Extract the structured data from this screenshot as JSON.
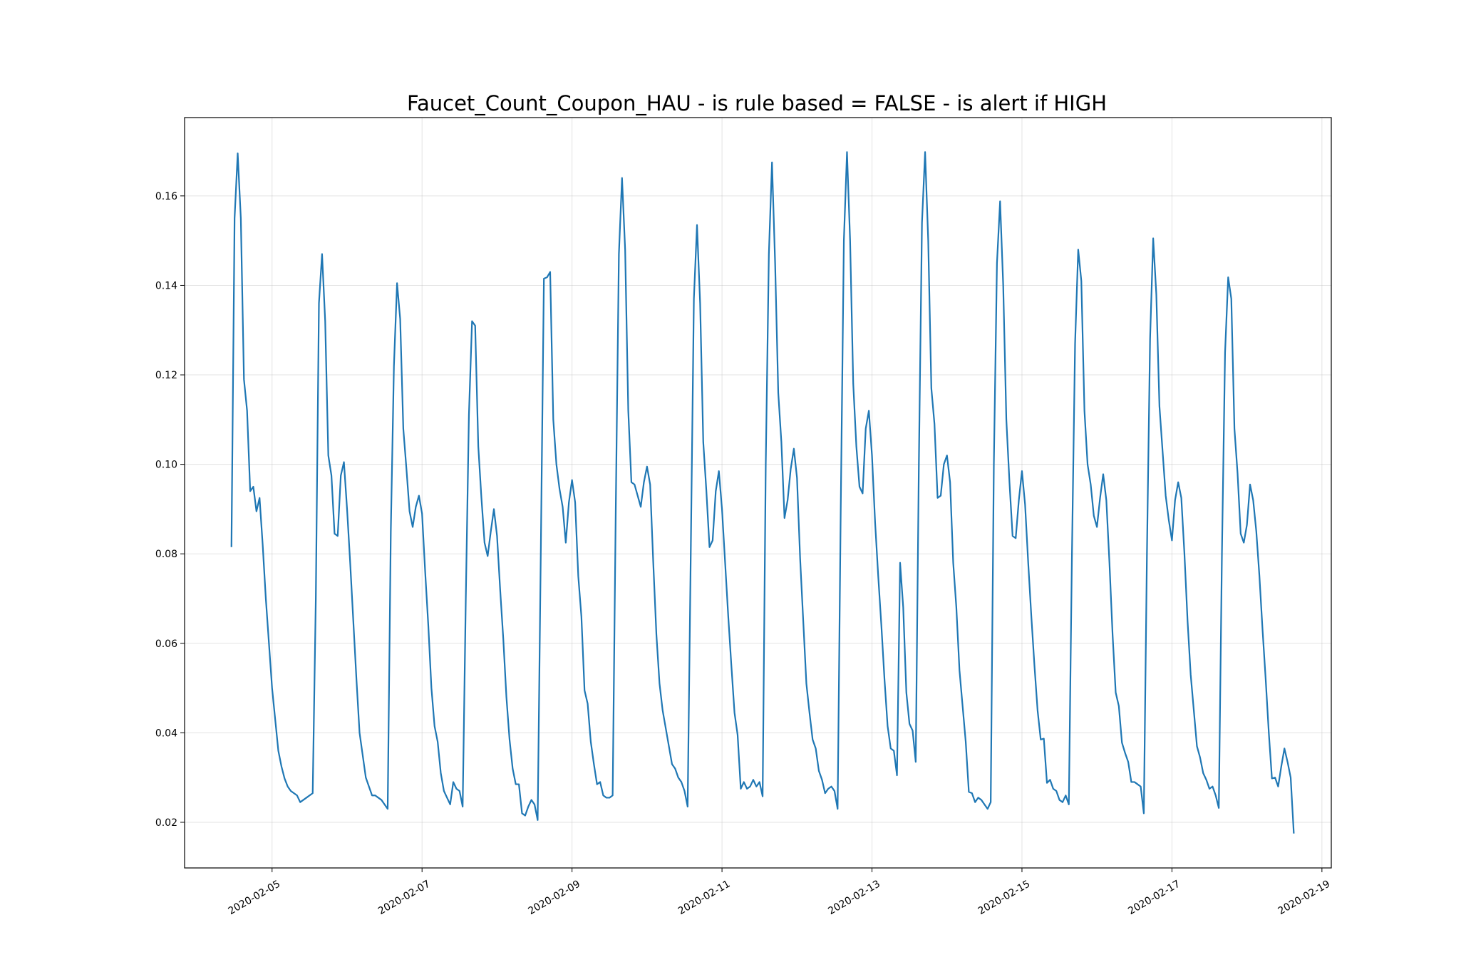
{
  "chart_data": {
    "type": "line",
    "title": "Faucet_Count_Coupon_HAU - is rule based =  FALSE - is alert if  HIGH",
    "xlabel": "",
    "ylabel": "",
    "x_range": [
      "2020-02-03T20:00",
      "2020-02-19T03:00"
    ],
    "ylim": [
      0.0098,
      0.1775
    ],
    "x_ticks": [
      "2020-02-05",
      "2020-02-07",
      "2020-02-09",
      "2020-02-11",
      "2020-02-13",
      "2020-02-15",
      "2020-02-17",
      "2020-02-19"
    ],
    "y_ticks": [
      0.02,
      0.04,
      0.06,
      0.08,
      0.1,
      0.12,
      0.14,
      0.16
    ],
    "y_tick_labels": [
      "0.02",
      "0.04",
      "0.06",
      "0.08",
      "0.10",
      "0.12",
      "0.14",
      "0.16"
    ],
    "grid": true,
    "legend": "none",
    "series_color": "#1f77b4",
    "x_start": "2020-02-04T11:00",
    "x_step_hours": 1,
    "series": [
      {
        "values": [
          0.0815,
          0.155,
          0.1695,
          0.155,
          0.119,
          0.112,
          0.094,
          0.095,
          0.0895,
          0.0925,
          0.082,
          0.07,
          0.06,
          0.05,
          0.043,
          0.036,
          0.0325,
          0.0298,
          0.028,
          0.027,
          0.0265,
          0.026,
          0.0245,
          0.025,
          0.0255,
          0.026,
          0.0265,
          0.07,
          0.136,
          0.147,
          0.132,
          0.102,
          0.0975,
          0.0845,
          0.084,
          0.0975,
          0.1005,
          0.09,
          0.078,
          0.065,
          0.052,
          0.04,
          0.035,
          0.03,
          0.028,
          0.026,
          0.026,
          0.0255,
          0.025,
          0.024,
          0.023,
          0.085,
          0.122,
          0.1405,
          0.1325,
          0.108,
          0.099,
          0.0895,
          0.086,
          0.0905,
          0.093,
          0.089,
          0.076,
          0.064,
          0.05,
          0.0415,
          0.038,
          0.031,
          0.027,
          0.0255,
          0.024,
          0.029,
          0.0275,
          0.027,
          0.0235,
          0.07,
          0.111,
          0.132,
          0.131,
          0.104,
          0.0925,
          0.0825,
          0.0795,
          0.085,
          0.09,
          0.084,
          0.072,
          0.061,
          0.048,
          0.0385,
          0.032,
          0.0285,
          0.0285,
          0.022,
          0.0215,
          0.0235,
          0.025,
          0.024,
          0.0205,
          0.08,
          0.1415,
          0.1418,
          0.143,
          0.11,
          0.1,
          0.0945,
          0.0905,
          0.0825,
          0.0915,
          0.0965,
          0.0915,
          0.075,
          0.066,
          0.0495,
          0.0465,
          0.038,
          0.033,
          0.0285,
          0.029,
          0.026,
          0.0255,
          0.0255,
          0.026,
          0.09,
          0.147,
          0.164,
          0.148,
          0.112,
          0.096,
          0.0955,
          0.093,
          0.0905,
          0.096,
          0.0995,
          0.0955,
          0.078,
          0.062,
          0.051,
          0.045,
          0.041,
          0.037,
          0.033,
          0.032,
          0.03,
          0.029,
          0.027,
          0.0235,
          0.08,
          0.137,
          0.1535,
          0.136,
          0.105,
          0.094,
          0.0815,
          0.083,
          0.094,
          0.0985,
          0.09,
          0.078,
          0.066,
          0.055,
          0.0445,
          0.0395,
          0.0275,
          0.029,
          0.0275,
          0.028,
          0.0295,
          0.028,
          0.029,
          0.0258,
          0.1,
          0.147,
          0.1675,
          0.145,
          0.116,
          0.105,
          0.088,
          0.092,
          0.099,
          0.1035,
          0.097,
          0.079,
          0.065,
          0.051,
          0.0445,
          0.0385,
          0.0365,
          0.0315,
          0.0295,
          0.0265,
          0.0275,
          0.028,
          0.027,
          0.023,
          0.09,
          0.15,
          0.1698,
          0.15,
          0.118,
          0.104,
          0.095,
          0.0935,
          0.108,
          0.112,
          0.102,
          0.087,
          0.075,
          0.064,
          0.052,
          0.0415,
          0.0365,
          0.036,
          0.0305,
          0.078,
          0.068,
          0.049,
          0.042,
          0.0405,
          0.0335,
          0.1,
          0.154,
          0.1698,
          0.15,
          0.117,
          0.109,
          0.0925,
          0.093,
          0.1,
          0.102,
          0.096,
          0.078,
          0.068,
          0.054,
          0.046,
          0.038,
          0.0268,
          0.0265,
          0.0245,
          0.0255,
          0.025,
          0.024,
          0.023,
          0.0245,
          0.1,
          0.145,
          0.1588,
          0.14,
          0.11,
          0.096,
          0.084,
          0.0835,
          0.092,
          0.0985,
          0.091,
          0.078,
          0.066,
          0.055,
          0.045,
          0.0385,
          0.0387,
          0.0288,
          0.0295,
          0.0275,
          0.027,
          0.025,
          0.0245,
          0.026,
          0.024,
          0.08,
          0.127,
          0.148,
          0.141,
          0.112,
          0.1,
          0.0955,
          0.0885,
          0.086,
          0.0925,
          0.0978,
          0.092,
          0.078,
          0.062,
          0.049,
          0.046,
          0.0378,
          0.0355,
          0.0335,
          0.029,
          0.029,
          0.0285,
          0.028,
          0.022,
          0.08,
          0.128,
          0.1505,
          0.138,
          0.113,
          0.103,
          0.093,
          0.0875,
          0.083,
          0.092,
          0.096,
          0.0925,
          0.08,
          0.065,
          0.053,
          0.045,
          0.037,
          0.0345,
          0.031,
          0.0295,
          0.0275,
          0.028,
          0.026,
          0.0232,
          0.08,
          0.125,
          0.1418,
          0.137,
          0.108,
          0.098,
          0.0845,
          0.0825,
          0.0865,
          0.0955,
          0.092,
          0.085,
          0.075,
          0.063,
          0.052,
          0.04,
          0.0298,
          0.03,
          0.028,
          0.0325,
          0.0365,
          0.0335,
          0.03,
          0.0175
        ]
      }
    ]
  }
}
